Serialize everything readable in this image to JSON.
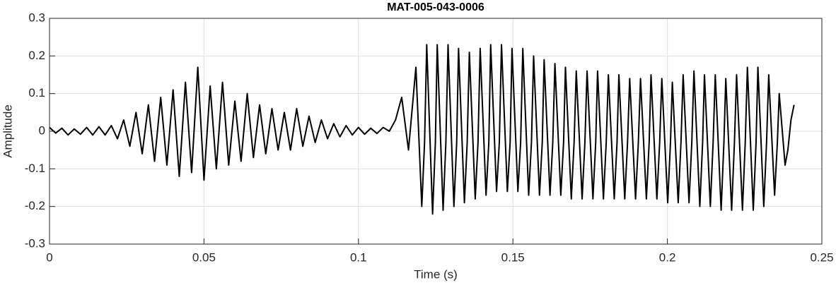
{
  "chart_data": {
    "type": "line",
    "title": "MAT-005-043-0006",
    "xlabel": "Time (s)",
    "ylabel": "Amplitude",
    "color": "#000000",
    "grid": true,
    "xlim": [
      0,
      0.25
    ],
    "xticks": [
      0,
      0.05,
      0.1,
      0.15,
      0.2,
      0.25
    ],
    "ylim": [
      -0.3,
      0.3
    ],
    "yticks": [
      0.3,
      0.2,
      0.1,
      0,
      -0.1,
      -0.2,
      -0.3
    ],
    "x": [
      0,
      0.002,
      0.004,
      0.006,
      0.008,
      0.01,
      0.012,
      0.014,
      0.016,
      0.018,
      0.02,
      0.022,
      0.024,
      0.026,
      0.028,
      0.03,
      0.032,
      0.034,
      0.036,
      0.038,
      0.04,
      0.042,
      0.044,
      0.046,
      0.048,
      0.05,
      0.052,
      0.054,
      0.056,
      0.058,
      0.06,
      0.062,
      0.064,
      0.066,
      0.068,
      0.07,
      0.072,
      0.074,
      0.076,
      0.078,
      0.08,
      0.082,
      0.084,
      0.086,
      0.088,
      0.09,
      0.092,
      0.094,
      0.096,
      0.098,
      0.1,
      0.102,
      0.104,
      0.106,
      0.108,
      0.11,
      0.112,
      0.114,
      0.1162,
      0.1186,
      0.1205,
      0.1214,
      0.1221,
      0.124,
      0.1249,
      0.1255,
      0.1274,
      0.1283,
      0.129,
      0.1309,
      0.1318,
      0.1324,
      0.1343,
      0.1352,
      0.1359,
      0.1378,
      0.1387,
      0.1394,
      0.1413,
      0.1422,
      0.1428,
      0.1447,
      0.1456,
      0.1463,
      0.1482,
      0.1491,
      0.1497,
      0.1516,
      0.1525,
      0.1532,
      0.1551,
      0.156,
      0.1567,
      0.1586,
      0.1595,
      0.1601,
      0.162,
      0.1629,
      0.1636,
      0.1655,
      0.1664,
      0.167,
      0.1689,
      0.1698,
      0.1705,
      0.1724,
      0.1733,
      0.174,
      0.1759,
      0.1768,
      0.1774,
      0.1793,
      0.1802,
      0.1809,
      0.1828,
      0.1837,
      0.1843,
      0.1862,
      0.1871,
      0.1878,
      0.1897,
      0.1906,
      0.1913,
      0.1932,
      0.1941,
      0.1947,
      0.1966,
      0.1975,
      0.1982,
      0.2001,
      0.201,
      0.2016,
      0.2035,
      0.2044,
      0.2051,
      0.207,
      0.2079,
      0.2086,
      0.2105,
      0.2114,
      0.212,
      0.2139,
      0.2148,
      0.2155,
      0.2174,
      0.2183,
      0.2189,
      0.2208,
      0.2217,
      0.2224,
      0.2243,
      0.2252,
      0.2259,
      0.2278,
      0.2287,
      0.2293,
      0.2312,
      0.2321,
      0.2328,
      0.2347,
      0.2356,
      0.2362,
      0.2381,
      0.239,
      0.24,
      0.241
    ],
    "values": [
      0.01,
      -0.005,
      0.008,
      -0.01,
      0.006,
      -0.008,
      0.01,
      -0.01,
      0.012,
      -0.01,
      0.015,
      -0.02,
      0.03,
      -0.04,
      0.05,
      -0.06,
      0.07,
      -0.08,
      0.09,
      -0.09,
      0.11,
      -0.12,
      0.13,
      -0.11,
      0.17,
      -0.13,
      0.12,
      -0.1,
      0.13,
      -0.09,
      0.08,
      -0.08,
      0.1,
      -0.07,
      0.07,
      -0.06,
      0.06,
      -0.05,
      0.05,
      -0.05,
      0.06,
      -0.04,
      0.04,
      -0.03,
      0.03,
      -0.02,
      0.02,
      -0.015,
      0.015,
      -0.01,
      0.01,
      -0.008,
      0.008,
      -0.006,
      0.01,
      0,
      0.03,
      0.09,
      -0.05,
      0.17,
      -0.2,
      -0.03,
      0.23,
      -0.22,
      -0.03,
      0.23,
      -0.21,
      -0.03,
      0.23,
      -0.2,
      -0.03,
      0.22,
      -0.19,
      -0.03,
      0.21,
      -0.18,
      -0.03,
      0.22,
      -0.17,
      -0.03,
      0.23,
      -0.16,
      -0.03,
      0.23,
      -0.16,
      -0.03,
      0.22,
      -0.16,
      -0.03,
      0.22,
      -0.17,
      -0.03,
      0.2,
      -0.17,
      -0.03,
      0.19,
      -0.17,
      -0.03,
      0.18,
      -0.17,
      -0.03,
      0.17,
      -0.18,
      -0.03,
      0.16,
      -0.18,
      -0.03,
      0.16,
      -0.18,
      -0.03,
      0.16,
      -0.18,
      -0.03,
      0.15,
      -0.18,
      -0.03,
      0.15,
      -0.18,
      -0.03,
      0.14,
      -0.18,
      -0.03,
      0.14,
      -0.18,
      -0.03,
      0.15,
      -0.18,
      -0.03,
      0.14,
      -0.19,
      -0.03,
      0.13,
      -0.19,
      -0.03,
      0.15,
      -0.19,
      -0.03,
      0.16,
      -0.2,
      -0.03,
      0.15,
      -0.2,
      -0.03,
      0.15,
      -0.21,
      -0.03,
      0.14,
      -0.21,
      -0.03,
      0.15,
      -0.21,
      -0.03,
      0.17,
      -0.21,
      -0.03,
      0.17,
      -0.2,
      -0.03,
      0.15,
      -0.17,
      -0.03,
      0.1,
      -0.09,
      -0.05,
      0.03,
      0.07
    ]
  }
}
